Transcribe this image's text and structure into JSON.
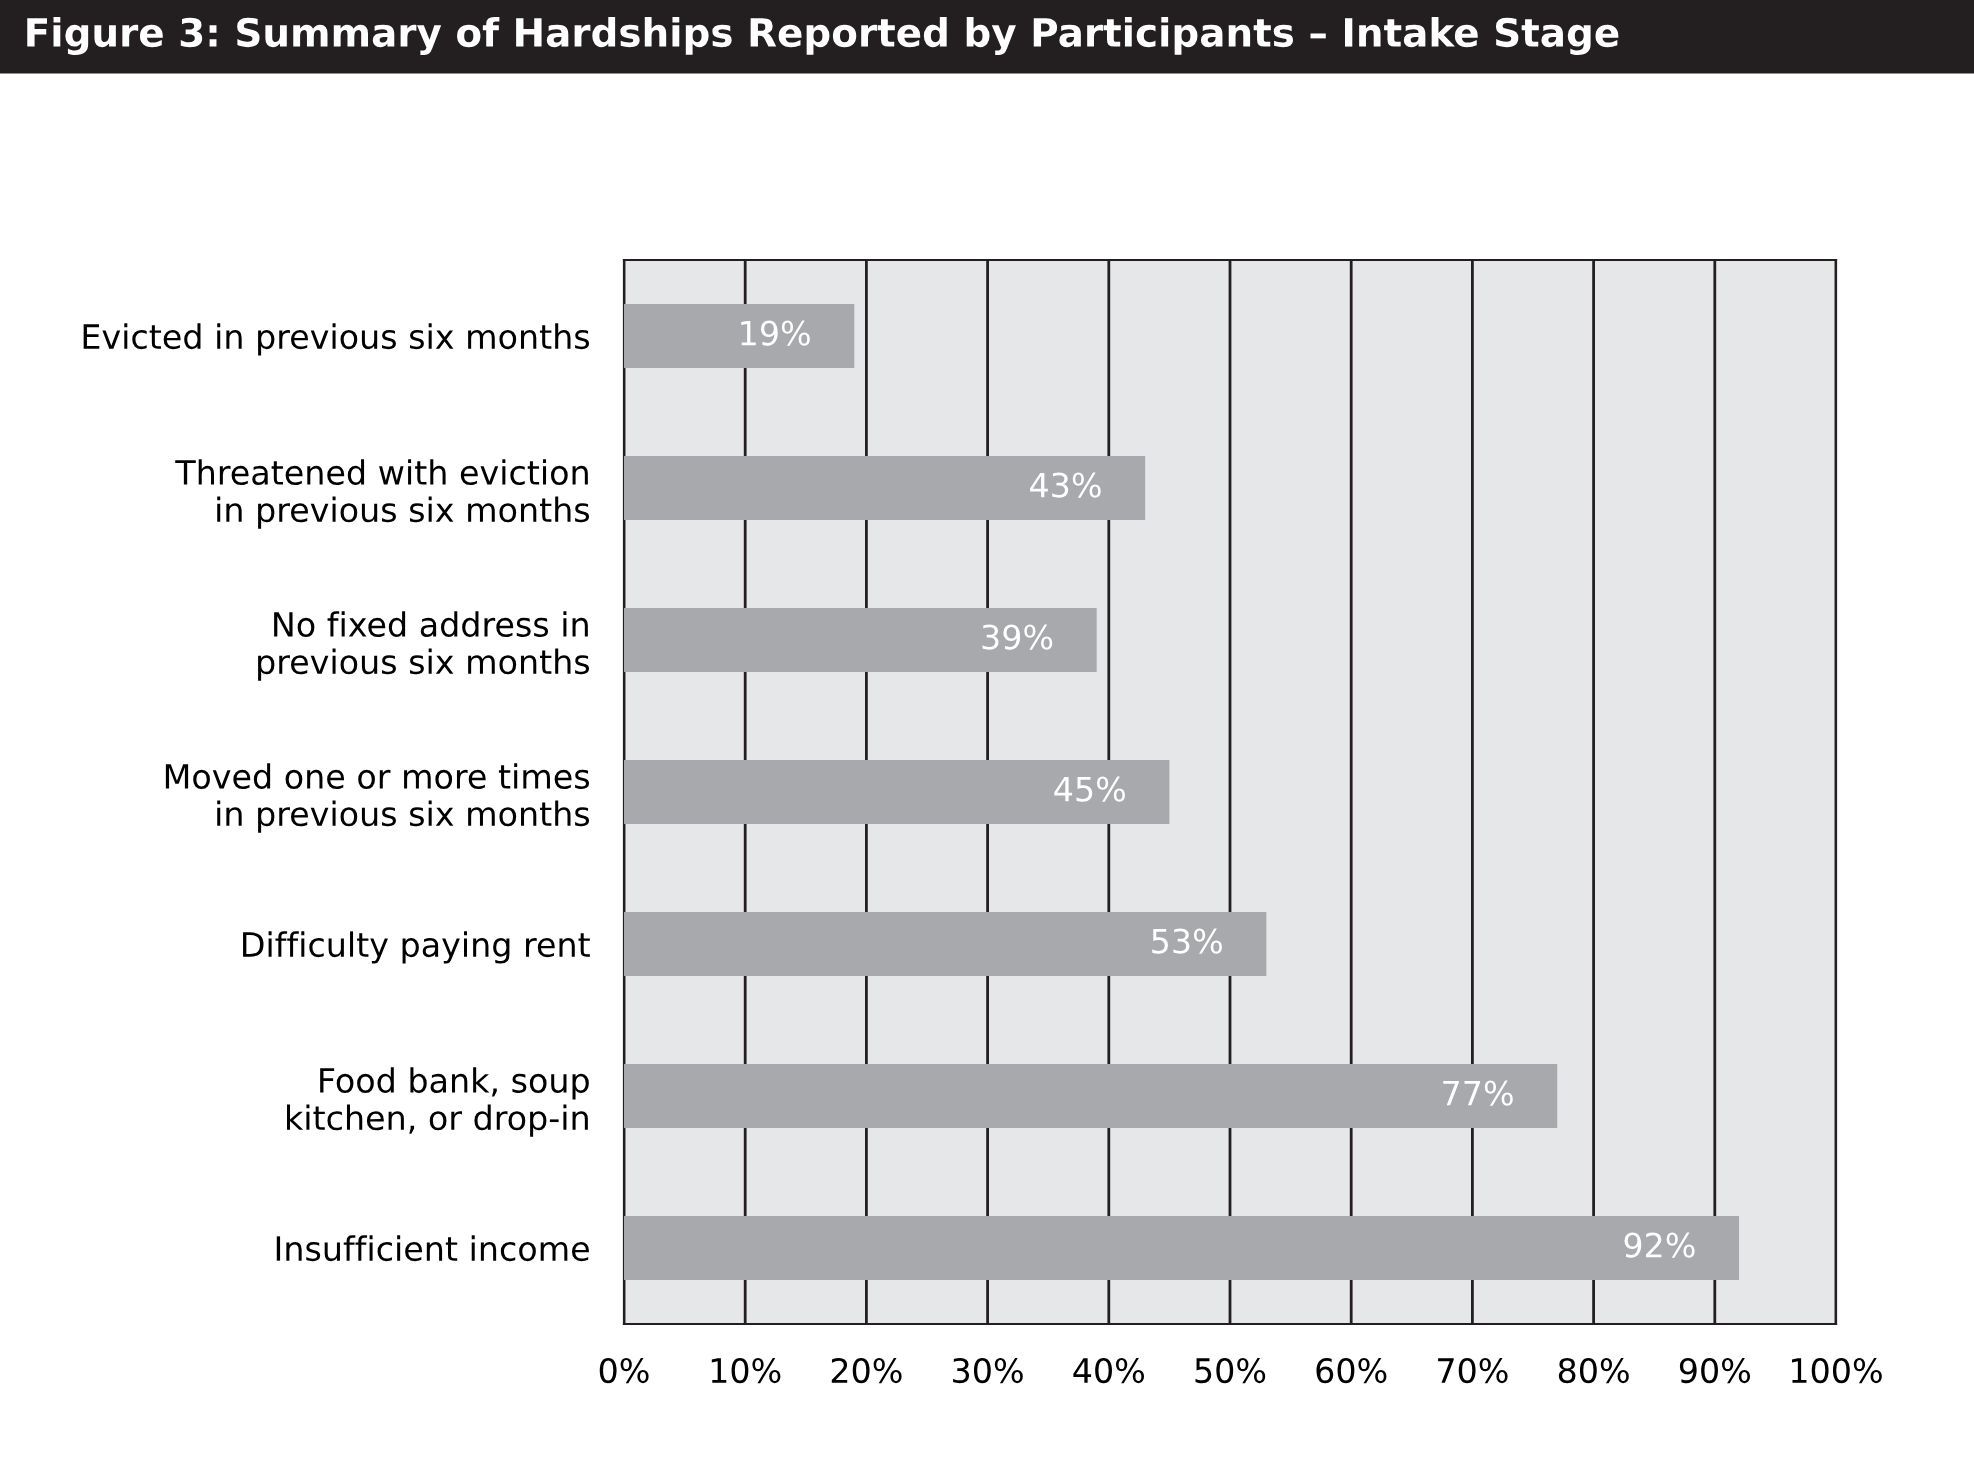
{
  "chart_data": {
    "type": "bar",
    "orientation": "horizontal",
    "title": "Figure 3: Summary of Hardships Reported by Participants – Intake Stage",
    "categories": [
      "Evicted in previous six months",
      "Threatened with eviction\nin previous six months",
      "No fixed address in\nprevious six months",
      "Moved one or more times\nin previous six months",
      "Difficulty paying rent",
      "Food bank, soup\nkitchen, or drop-in",
      "Insufficient income"
    ],
    "values": [
      19,
      43,
      39,
      45,
      53,
      77,
      92
    ],
    "value_labels": [
      "19%",
      "43%",
      "39%",
      "45%",
      "53%",
      "77%",
      "92%"
    ],
    "color": "#a7a9ac",
    "xlim": [
      0,
      100
    ],
    "xticks": [
      {
        "value": 0,
        "label": "0%"
      },
      {
        "value": 10,
        "label": "10%"
      },
      {
        "value": 20,
        "label": "20%"
      },
      {
        "value": 30,
        "label": "30%"
      },
      {
        "value": 40,
        "label": "40%"
      },
      {
        "value": 50,
        "label": "50%"
      },
      {
        "value": 60,
        "label": "60%"
      },
      {
        "value": 70,
        "label": "70%"
      },
      {
        "value": 80,
        "label": "80%"
      },
      {
        "value": 90,
        "label": "90%"
      },
      {
        "value": 100,
        "label": "100%"
      }
    ],
    "grid": "x",
    "legend": false
  }
}
